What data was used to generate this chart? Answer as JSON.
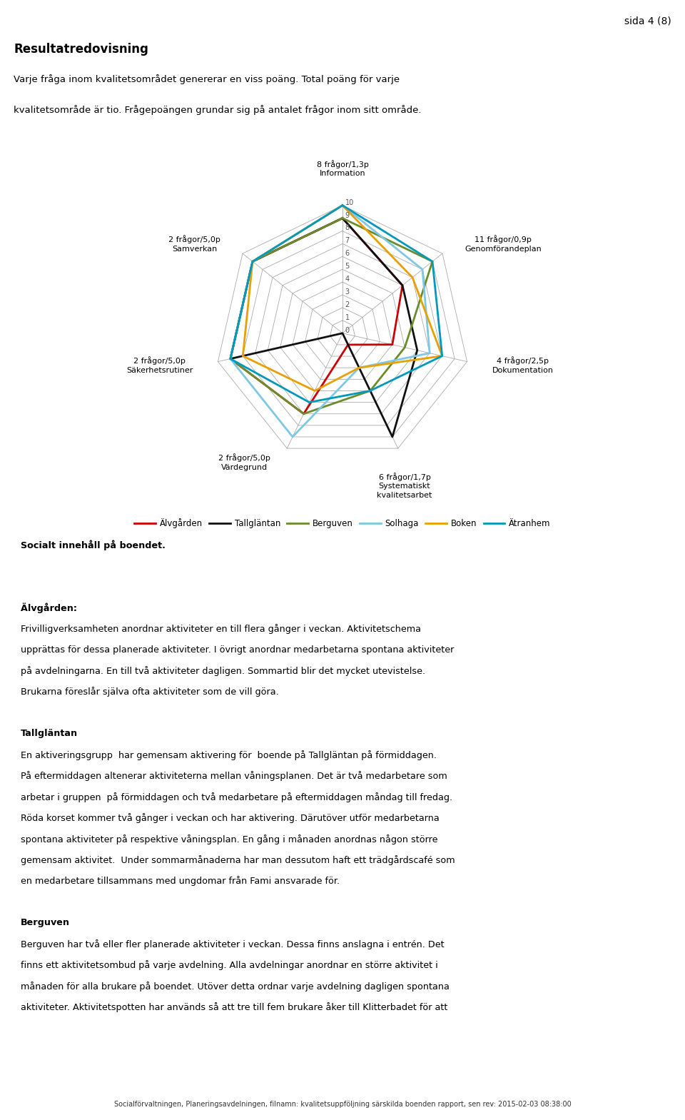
{
  "page_label": "sida 4 (8)",
  "axes_labels": [
    "8 frågor/1,3p\nInformation",
    "11 frågor/0,9p\nGenomförandeplan",
    "4 frågor/2,5p\nDokumentation",
    "6 frågor/1,7p\nSystematiskt\nkvalitetsarbet",
    "2 frågor/5,0p\nVärdegrund",
    "2 frågor/5,0p\nSäkerhetsrutiner",
    "2 frågor/5,0p\nSamverkan"
  ],
  "series": [
    {
      "name": "Älvgården",
      "color": "#cc0000",
      "values": [
        9,
        6,
        4,
        1,
        7,
        9,
        9
      ]
    },
    {
      "name": "Tallgläntan",
      "color": "#111111",
      "values": [
        9,
        6,
        6,
        9,
        0,
        9,
        9
      ]
    },
    {
      "name": "Berguven",
      "color": "#6b8c2a",
      "values": [
        9,
        9,
        5,
        5,
        7,
        9,
        9
      ]
    },
    {
      "name": "Solhaga",
      "color": "#7ec8e3",
      "values": [
        10,
        8,
        7,
        3,
        9,
        9,
        9
      ]
    },
    {
      "name": "Boken",
      "color": "#e8a000",
      "values": [
        10,
        7,
        8,
        3,
        5,
        8,
        9
      ]
    },
    {
      "name": "Ätranhem",
      "color": "#0099bb",
      "values": [
        10,
        9,
        8,
        5,
        6,
        9,
        9
      ]
    }
  ],
  "max_val": 10,
  "tick_vals": [
    0,
    1,
    2,
    3,
    4,
    5,
    6,
    7,
    8,
    9,
    10
  ],
  "grid_color": "#aaaaaa",
  "bg_color": "#ffffff",
  "header_line1": "Resultatredovisning",
  "header_line2": "Varje fråga inom kvalitetsområdet genererar en viss poäng. Total poäng för varje",
  "header_line3": "kvalitetsområde är tio. Frågepoängen grundar sig på antalet frågor inom sitt område.",
  "body_bold_title": "Socialt innehåll på boendet.",
  "body_sections": [
    {
      "heading": "Älvgården:",
      "heading_bold": true,
      "text": "Frivilligverksamheten anordnar aktiviteter en till flera gånger i veckan. Aktivitetschema\nupp rättas för dessa planerade aktiviteter. I övrigt anordnar medarbetarna spontana aktiviteter\npå avdelningarna. En till två aktiviteter dagligen. Sommartid blir det mycket utevistelse.\nBrukarna föreslår själva ofta aktiviteter som de vill göra."
    },
    {
      "heading": "Tallgläntan",
      "heading_bold": false,
      "text": "En aktiveringsgrupp  har gemensam aktivering för  boende på Tallgläntan på förmiddagen.\nPå eftermiddagen altenerar aktiviteterna mellan våningsplanen. Det är två medarbetare som\narbetar i gruppen  på förmiddagen och två medarbetare på eftermiddagen måndag till fredag.\nRöda korset kommer två gånger i veckan och har aktivering. Därutöver utför medarbetarna\nspontana aktiviteter på respektive våningsplan. En gång i månaden anordnas någon större\ngemensam aktivitet.  Under sommarmånaderna har man dessutom haft ett trädgårdscafé som\nen medarbetare tillsammans med ungdomar från Fami ansvarade för."
    },
    {
      "heading": "Berguven",
      "heading_bold": false,
      "text": "Berguven har två eller fler planerade aktiviteter i veckan. Dessa finns anslagna i entrén. Det\nfinns ett aktivitetsombud på varje avdelning. Alla avdelningar anordnar en större aktivitet i\nmånaden för alla brukare på boendet. Utöver detta ordnar varje avdelning dagligen spontana\naktiviteter. Aktivitetspotten har används så att tre till fem brukare åker till Klitterbadet för att"
    }
  ],
  "footer": "Socialförvaltningen, Planeringsavdelningen, filnamn: kvalitetsuppföljning särskilda boenden rapport, sen rev: 2015-02-03 08:38:00"
}
